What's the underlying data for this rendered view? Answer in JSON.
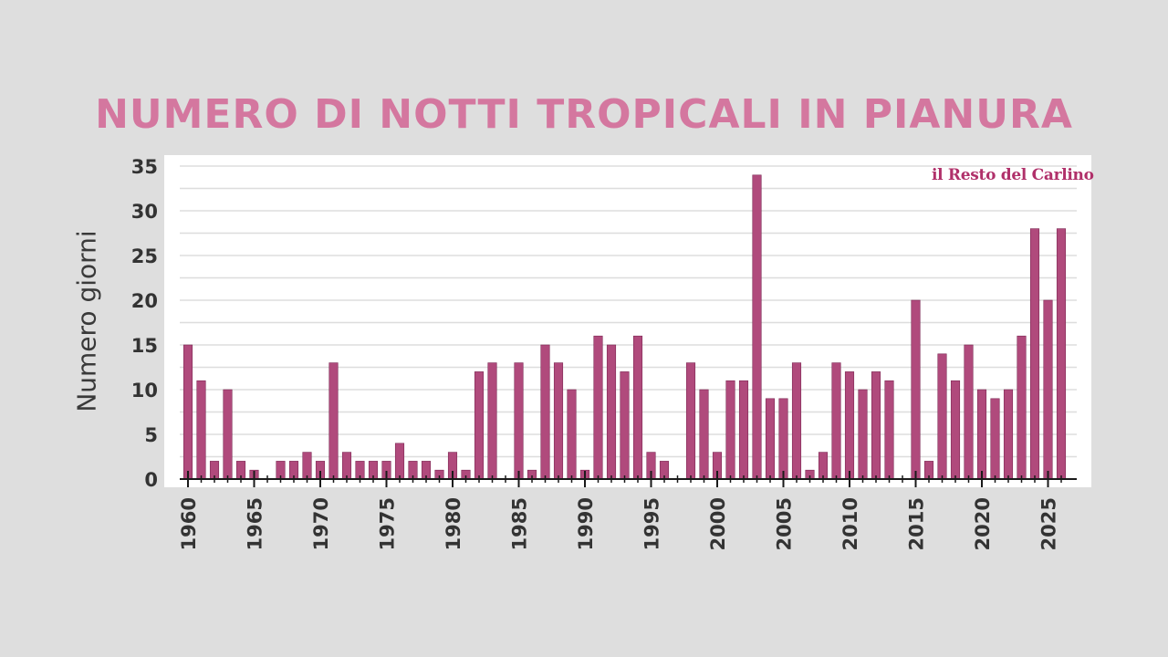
{
  "title": "NUMERO DI NOTTI TROPICALI IN PIANURA",
  "logo_text": "il Resto del Carlino",
  "colors": {
    "background": "#dedede",
    "plot_background": "#ffffff",
    "title": "#d4779f",
    "bar": "#b04a7c",
    "logo": "#b0306a"
  },
  "chart_data": {
    "type": "bar",
    "title": "NUMERO DI NOTTI TROPICALI IN PIANURA",
    "xlabel": "",
    "ylabel": "Numero giorni",
    "ylim": [
      0,
      35
    ],
    "yticks": [
      0,
      5,
      10,
      15,
      20,
      25,
      30,
      35
    ],
    "xticks": [
      1960,
      1965,
      1970,
      1975,
      1980,
      1985,
      1990,
      1995,
      2000,
      2005,
      2010,
      2015,
      2020,
      2025
    ],
    "grid": true,
    "categories": [
      1960,
      1961,
      1962,
      1963,
      1964,
      1965,
      1966,
      1967,
      1968,
      1969,
      1970,
      1971,
      1972,
      1973,
      1974,
      1975,
      1976,
      1977,
      1978,
      1979,
      1980,
      1981,
      1982,
      1983,
      1984,
      1985,
      1986,
      1987,
      1988,
      1989,
      1990,
      1991,
      1992,
      1993,
      1994,
      1995,
      1996,
      1997,
      1998,
      1999,
      2000,
      2001,
      2002,
      2003,
      2004,
      2005,
      2006,
      2007,
      2008,
      2009,
      2010,
      2011,
      2012,
      2013,
      2014,
      2015,
      2016,
      2017,
      2018,
      2019,
      2020,
      2021,
      2022,
      2023,
      2024,
      2025,
      2026
    ],
    "values": [
      15,
      11,
      2,
      10,
      2,
      1,
      0,
      2,
      2,
      3,
      2,
      13,
      3,
      2,
      2,
      2,
      4,
      2,
      2,
      1,
      3,
      1,
      12,
      13,
      0,
      13,
      1,
      15,
      13,
      10,
      1,
      16,
      15,
      12,
      16,
      3,
      2,
      0,
      13,
      10,
      3,
      11,
      11,
      34,
      9,
      9,
      13,
      1,
      3,
      13,
      12,
      10,
      12,
      11,
      0,
      20,
      2,
      14,
      11,
      15,
      10,
      9,
      10,
      16,
      28,
      20,
      28
    ]
  }
}
